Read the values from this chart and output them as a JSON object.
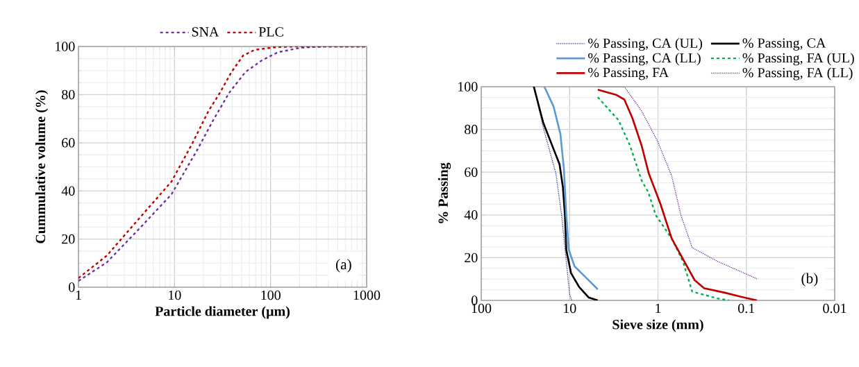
{
  "chart_data": [
    {
      "type": "line",
      "xlabel": "Particle diameter (µm)",
      "ylabel": "Cummulative volume (%)",
      "log": "x",
      "grid": true,
      "legend": "top",
      "marker": "none",
      "xlim": [
        1,
        1000
      ],
      "xticks": [
        1,
        10,
        100,
        1000
      ],
      "ylim": [
        0,
        100
      ],
      "yticks": [
        0,
        20,
        40,
        60,
        80,
        100
      ],
      "annotations": [
        "(a)"
      ],
      "series": [
        {
          "name": "SNA",
          "color": "#7030a0",
          "line_style": "dashed",
          "x": [
            1,
            1.97,
            4.27,
            9.3,
            17.1,
            25.2,
            37.1,
            54.7,
            80.9,
            119,
            207,
            360,
            1000
          ],
          "values": [
            2.6,
            10.3,
            24.2,
            38.6,
            56.8,
            69.3,
            80.8,
            89.4,
            94.2,
            97.6,
            99.5,
            100,
            100
          ]
        },
        {
          "name": "PLC",
          "color": "#c00000",
          "line_style": "dashed",
          "x": [
            1,
            1.97,
            4.27,
            9.3,
            15.3,
            22.5,
            29.7,
            39.2,
            51.7,
            68.2,
            119,
            207,
            1000
          ],
          "values": [
            3.8,
            13.1,
            28.5,
            43.9,
            59.7,
            73.1,
            80.8,
            89.4,
            96.2,
            98.6,
            99.8,
            100,
            100
          ]
        }
      ]
    },
    {
      "type": "line",
      "xlabel": "Sieve size (mm)",
      "ylabel": "% Passing",
      "log": "x",
      "grid": true,
      "legend": "top right",
      "marker": "none",
      "xlim": [
        100,
        0.01
      ],
      "xticks": [
        100,
        10,
        1,
        0.1,
        0.01
      ],
      "ylim": [
        0,
        100
      ],
      "yticks": [
        0,
        20,
        40,
        60,
        80,
        100
      ],
      "annotations": [
        "(b)"
      ],
      "series": [
        {
          "name": "% Passing, CA (UL)",
          "color": "#2f3d8f",
          "line_style": "dotted",
          "x": [
            25.4,
            19.9,
            14.3,
            12.3,
            10.9,
            10.0,
            9.46
          ],
          "values": [
            100,
            81,
            59.4,
            39.9,
            18.2,
            3,
            0
          ]
        },
        {
          "name": "% Passing, CA",
          "color": "#000000",
          "line_style": "solid",
          "x": [
            25.4,
            19.9,
            16.1,
            13.0,
            11.9,
            11.3,
            10.9,
            9.64,
            7.8,
            6.1,
            4.8
          ],
          "values": [
            100,
            83.2,
            73.5,
            63.7,
            52.9,
            39.9,
            23.6,
            12.8,
            6.3,
            1.4,
            0
          ]
        },
        {
          "name": "% Passing, CA (LL)",
          "color": "#5b9bd5",
          "line_style": "solid",
          "x": [
            19.3,
            15.2,
            12.7,
            11.6,
            10.9,
            10.2,
            8.8,
            6.5,
            4.8
          ],
          "values": [
            100,
            90.8,
            77.8,
            61.5,
            39.9,
            23.6,
            16.0,
            10.6,
            5.2
          ]
        },
        {
          "name": "% Passing, FA (UL)",
          "color": "#00b050",
          "line_style": "dashed",
          "x": [
            4.8,
            2.79,
            2.07,
            1.53,
            1.29,
            1.06,
            0.7,
            0.52,
            0.41,
            0.21,
            0.156
          ],
          "values": [
            95.1,
            84.3,
            72.4,
            56.1,
            50.7,
            39.9,
            29.0,
            18.2,
            4.1,
            0.9,
            0
          ]
        },
        {
          "name": "% Passing, FA",
          "color": "#c00000",
          "line_style": "solid",
          "x": [
            4.8,
            2.97,
            2.4,
            1.95,
            1.53,
            1.27,
            0.94,
            0.7,
            0.52,
            0.385,
            0.3,
            0.176,
            0.115,
            0.0757
          ],
          "values": [
            98.6,
            96.2,
            94.0,
            85.4,
            72.4,
            59.4,
            45.3,
            29.0,
            19.3,
            9.5,
            5.7,
            3.6,
            1.7,
            0
          ]
        },
        {
          "name": "% Passing, FA (LL)",
          "color": "#7030a0",
          "line_style": "dotted",
          "x": [
            4.8,
            2.4,
            1.53,
            1.01,
            0.7,
            0.55,
            0.41,
            0.21,
            0.0757
          ],
          "values": [
            100,
            100,
            88.6,
            74.5,
            58.3,
            39.9,
            24.7,
            18.2,
            10.1
          ]
        }
      ]
    }
  ]
}
